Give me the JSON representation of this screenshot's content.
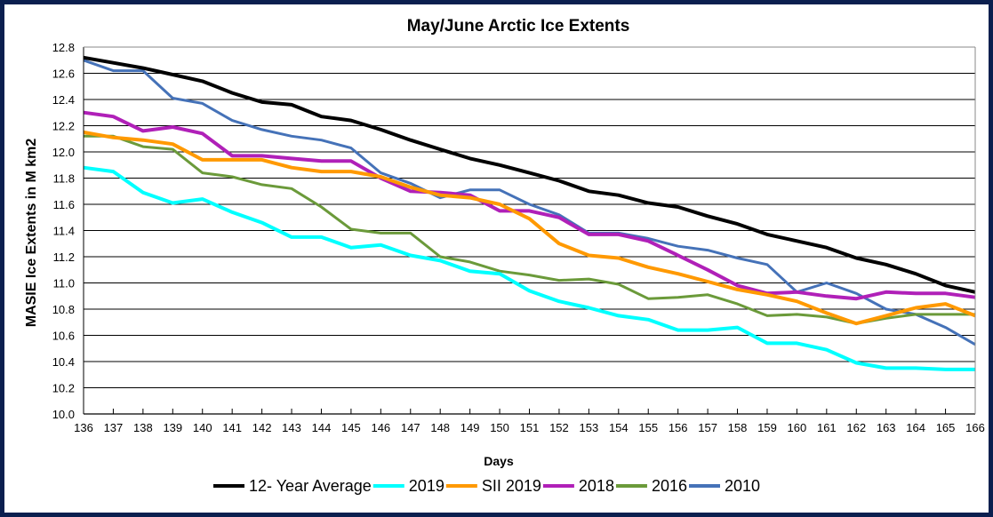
{
  "chart_data": {
    "type": "line",
    "title": "May/June Arctic Ice Extents",
    "xlabel": "Days",
    "ylabel": "MASIE Ice Extents in M km2",
    "ylim": [
      10.0,
      12.8
    ],
    "yticks": [
      "10.0",
      "10.2",
      "10.4",
      "10.6",
      "10.8",
      "11.0",
      "11.2",
      "11.4",
      "11.6",
      "11.8",
      "12.0",
      "12.2",
      "12.4",
      "12.6",
      "12.8"
    ],
    "x": [
      136,
      137,
      138,
      139,
      140,
      141,
      142,
      143,
      144,
      145,
      146,
      147,
      148,
      149,
      150,
      151,
      152,
      153,
      154,
      155,
      156,
      157,
      158,
      159,
      160,
      161,
      162,
      163,
      164,
      165,
      166
    ],
    "grid": "horizontal",
    "legend_position": "bottom",
    "series": [
      {
        "name": "12- Year Average",
        "color": "#000000",
        "width": 4,
        "values": [
          12.72,
          12.68,
          12.64,
          12.59,
          12.54,
          12.45,
          12.38,
          12.36,
          12.27,
          12.24,
          12.17,
          12.09,
          12.02,
          11.95,
          11.9,
          11.84,
          11.78,
          11.7,
          11.67,
          11.61,
          11.58,
          11.51,
          11.45,
          11.37,
          11.32,
          11.27,
          11.19,
          11.14,
          11.07,
          10.98,
          10.93
        ]
      },
      {
        "name": "2019",
        "color": "#00ffff",
        "width": 4,
        "values": [
          11.88,
          11.85,
          11.69,
          11.61,
          11.64,
          11.54,
          11.46,
          11.35,
          11.35,
          11.27,
          11.29,
          11.21,
          11.17,
          11.09,
          11.07,
          10.94,
          10.86,
          10.81,
          10.75,
          10.72,
          10.64,
          10.64,
          10.66,
          10.54,
          10.54,
          10.49,
          10.39,
          10.35,
          10.35,
          10.34,
          10.34
        ]
      },
      {
        "name": "SII 2019",
        "color": "#ff9900",
        "width": 4,
        "values": [
          12.15,
          12.11,
          12.09,
          12.06,
          11.94,
          11.94,
          11.94,
          11.88,
          11.85,
          11.85,
          11.81,
          11.73,
          11.67,
          11.65,
          11.6,
          11.49,
          11.3,
          11.21,
          11.19,
          11.12,
          11.07,
          11.01,
          10.95,
          10.91,
          10.86,
          10.77,
          10.69,
          10.75,
          10.81,
          10.84,
          10.75
        ]
      },
      {
        "name": "2018",
        "color": "#b020b8",
        "width": 4,
        "values": [
          12.3,
          12.27,
          12.16,
          12.19,
          12.14,
          11.97,
          11.97,
          11.95,
          11.93,
          11.93,
          11.8,
          11.7,
          11.69,
          11.67,
          11.55,
          11.55,
          11.5,
          11.37,
          11.37,
          11.32,
          11.21,
          11.1,
          10.98,
          10.92,
          10.93,
          10.9,
          10.88,
          10.93,
          10.92,
          10.92,
          10.89
        ]
      },
      {
        "name": "2016",
        "color": "#6b9a3a",
        "width": 3,
        "values": [
          12.12,
          12.12,
          12.04,
          12.02,
          11.84,
          11.81,
          11.75,
          11.72,
          11.58,
          11.41,
          11.38,
          11.38,
          11.2,
          11.16,
          11.09,
          11.06,
          11.02,
          11.03,
          10.99,
          10.88,
          10.89,
          10.91,
          10.84,
          10.75,
          10.76,
          10.74,
          10.69,
          10.73,
          10.76,
          10.76,
          10.76
        ]
      },
      {
        "name": "2010",
        "color": "#4572b8",
        "width": 3,
        "values": [
          12.7,
          12.62,
          12.62,
          12.41,
          12.37,
          12.24,
          12.17,
          12.12,
          12.09,
          12.03,
          11.84,
          11.76,
          11.65,
          11.71,
          11.71,
          11.6,
          11.52,
          11.38,
          11.38,
          11.34,
          11.28,
          11.25,
          11.19,
          11.14,
          10.93,
          11.0,
          10.92,
          10.8,
          10.76,
          10.66,
          10.53
        ]
      }
    ]
  }
}
